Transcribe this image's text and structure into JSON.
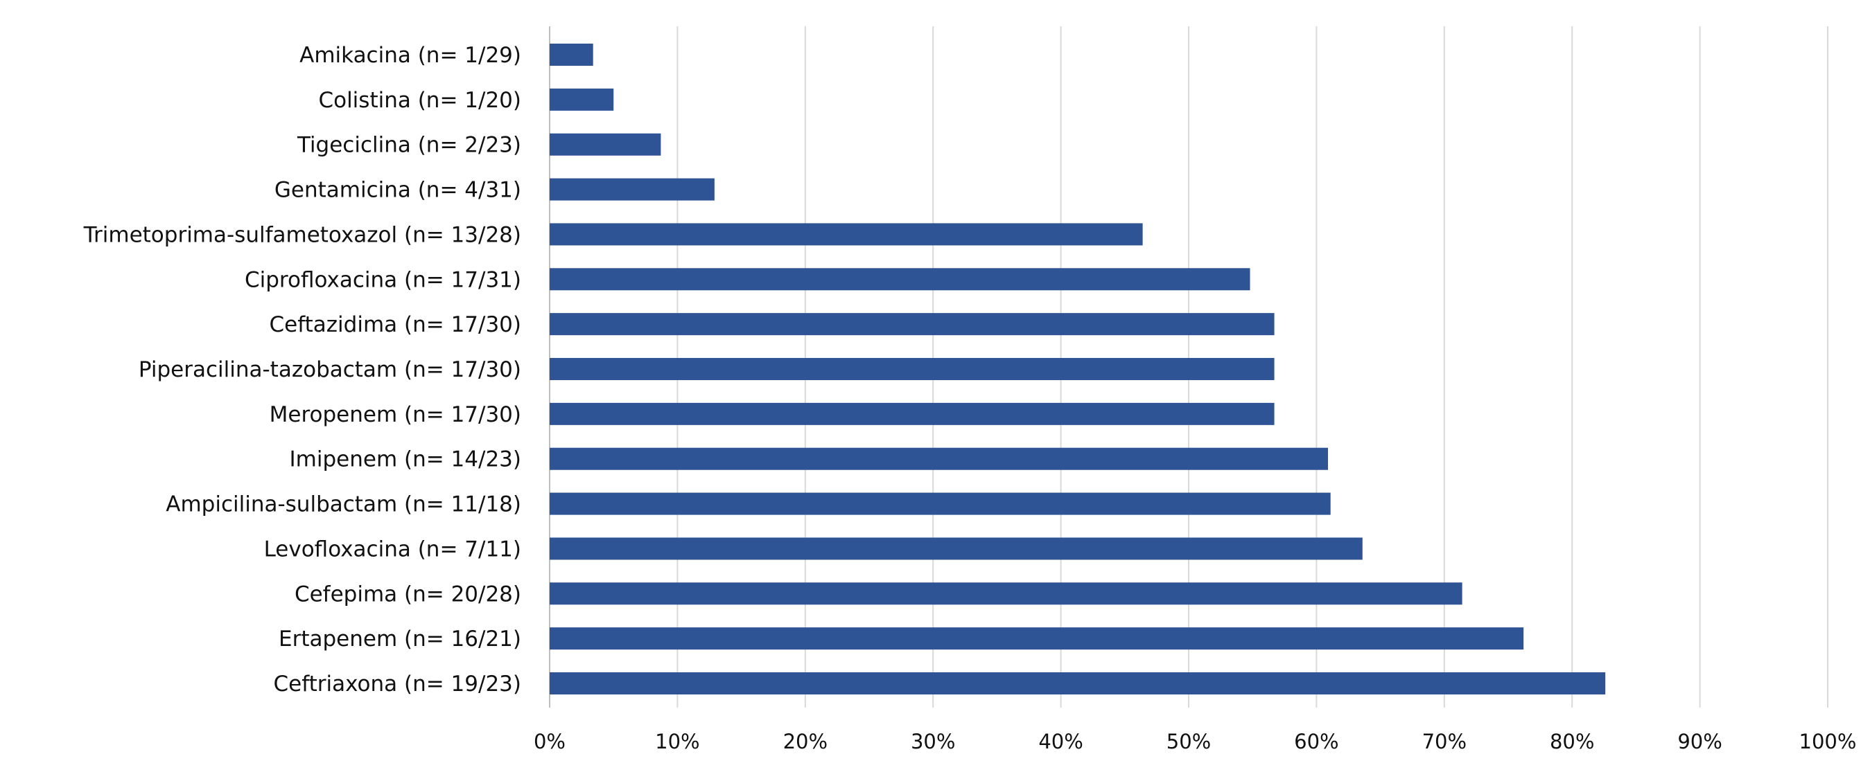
{
  "chart_data": {
    "type": "bar",
    "orientation": "horizontal",
    "title": "",
    "xlabel": "",
    "ylabel": "",
    "categories": [
      "Amikacina (n= 1/29)",
      "Colistina (n= 1/20)",
      "Tigeciclina (n= 2/23)",
      "Gentamicina (n= 4/31)",
      "Trimetoprima-sulfametoxazol (n= 13/28)",
      "Ciprofloxacina (n= 17/31)",
      "Ceftazidima (n= 17/30)",
      "Piperacilina-tazobactam (n= 17/30)",
      "Meropenem (n= 17/30)",
      "Imipenem (n= 14/23)",
      "Ampicilina-sulbactam (n= 11/18)",
      "Levofloxacina (n= 7/11)",
      "Cefepima (n= 20/28)",
      "Ertapenem (n= 16/21)",
      "Ceftriaxona (n= 19/23)"
    ],
    "values": [
      3.4,
      5.0,
      8.7,
      12.9,
      46.4,
      54.8,
      56.7,
      56.7,
      56.7,
      60.9,
      61.1,
      63.6,
      71.4,
      76.2,
      82.6
    ],
    "xlim": [
      0,
      100
    ],
    "ticks": [
      "0%",
      "10%",
      "20%",
      "30%",
      "40%",
      "50%",
      "60%",
      "70%",
      "80%",
      "90%",
      "100%"
    ],
    "grid": true,
    "legend": "none",
    "bar_color": "#2f5496"
  }
}
